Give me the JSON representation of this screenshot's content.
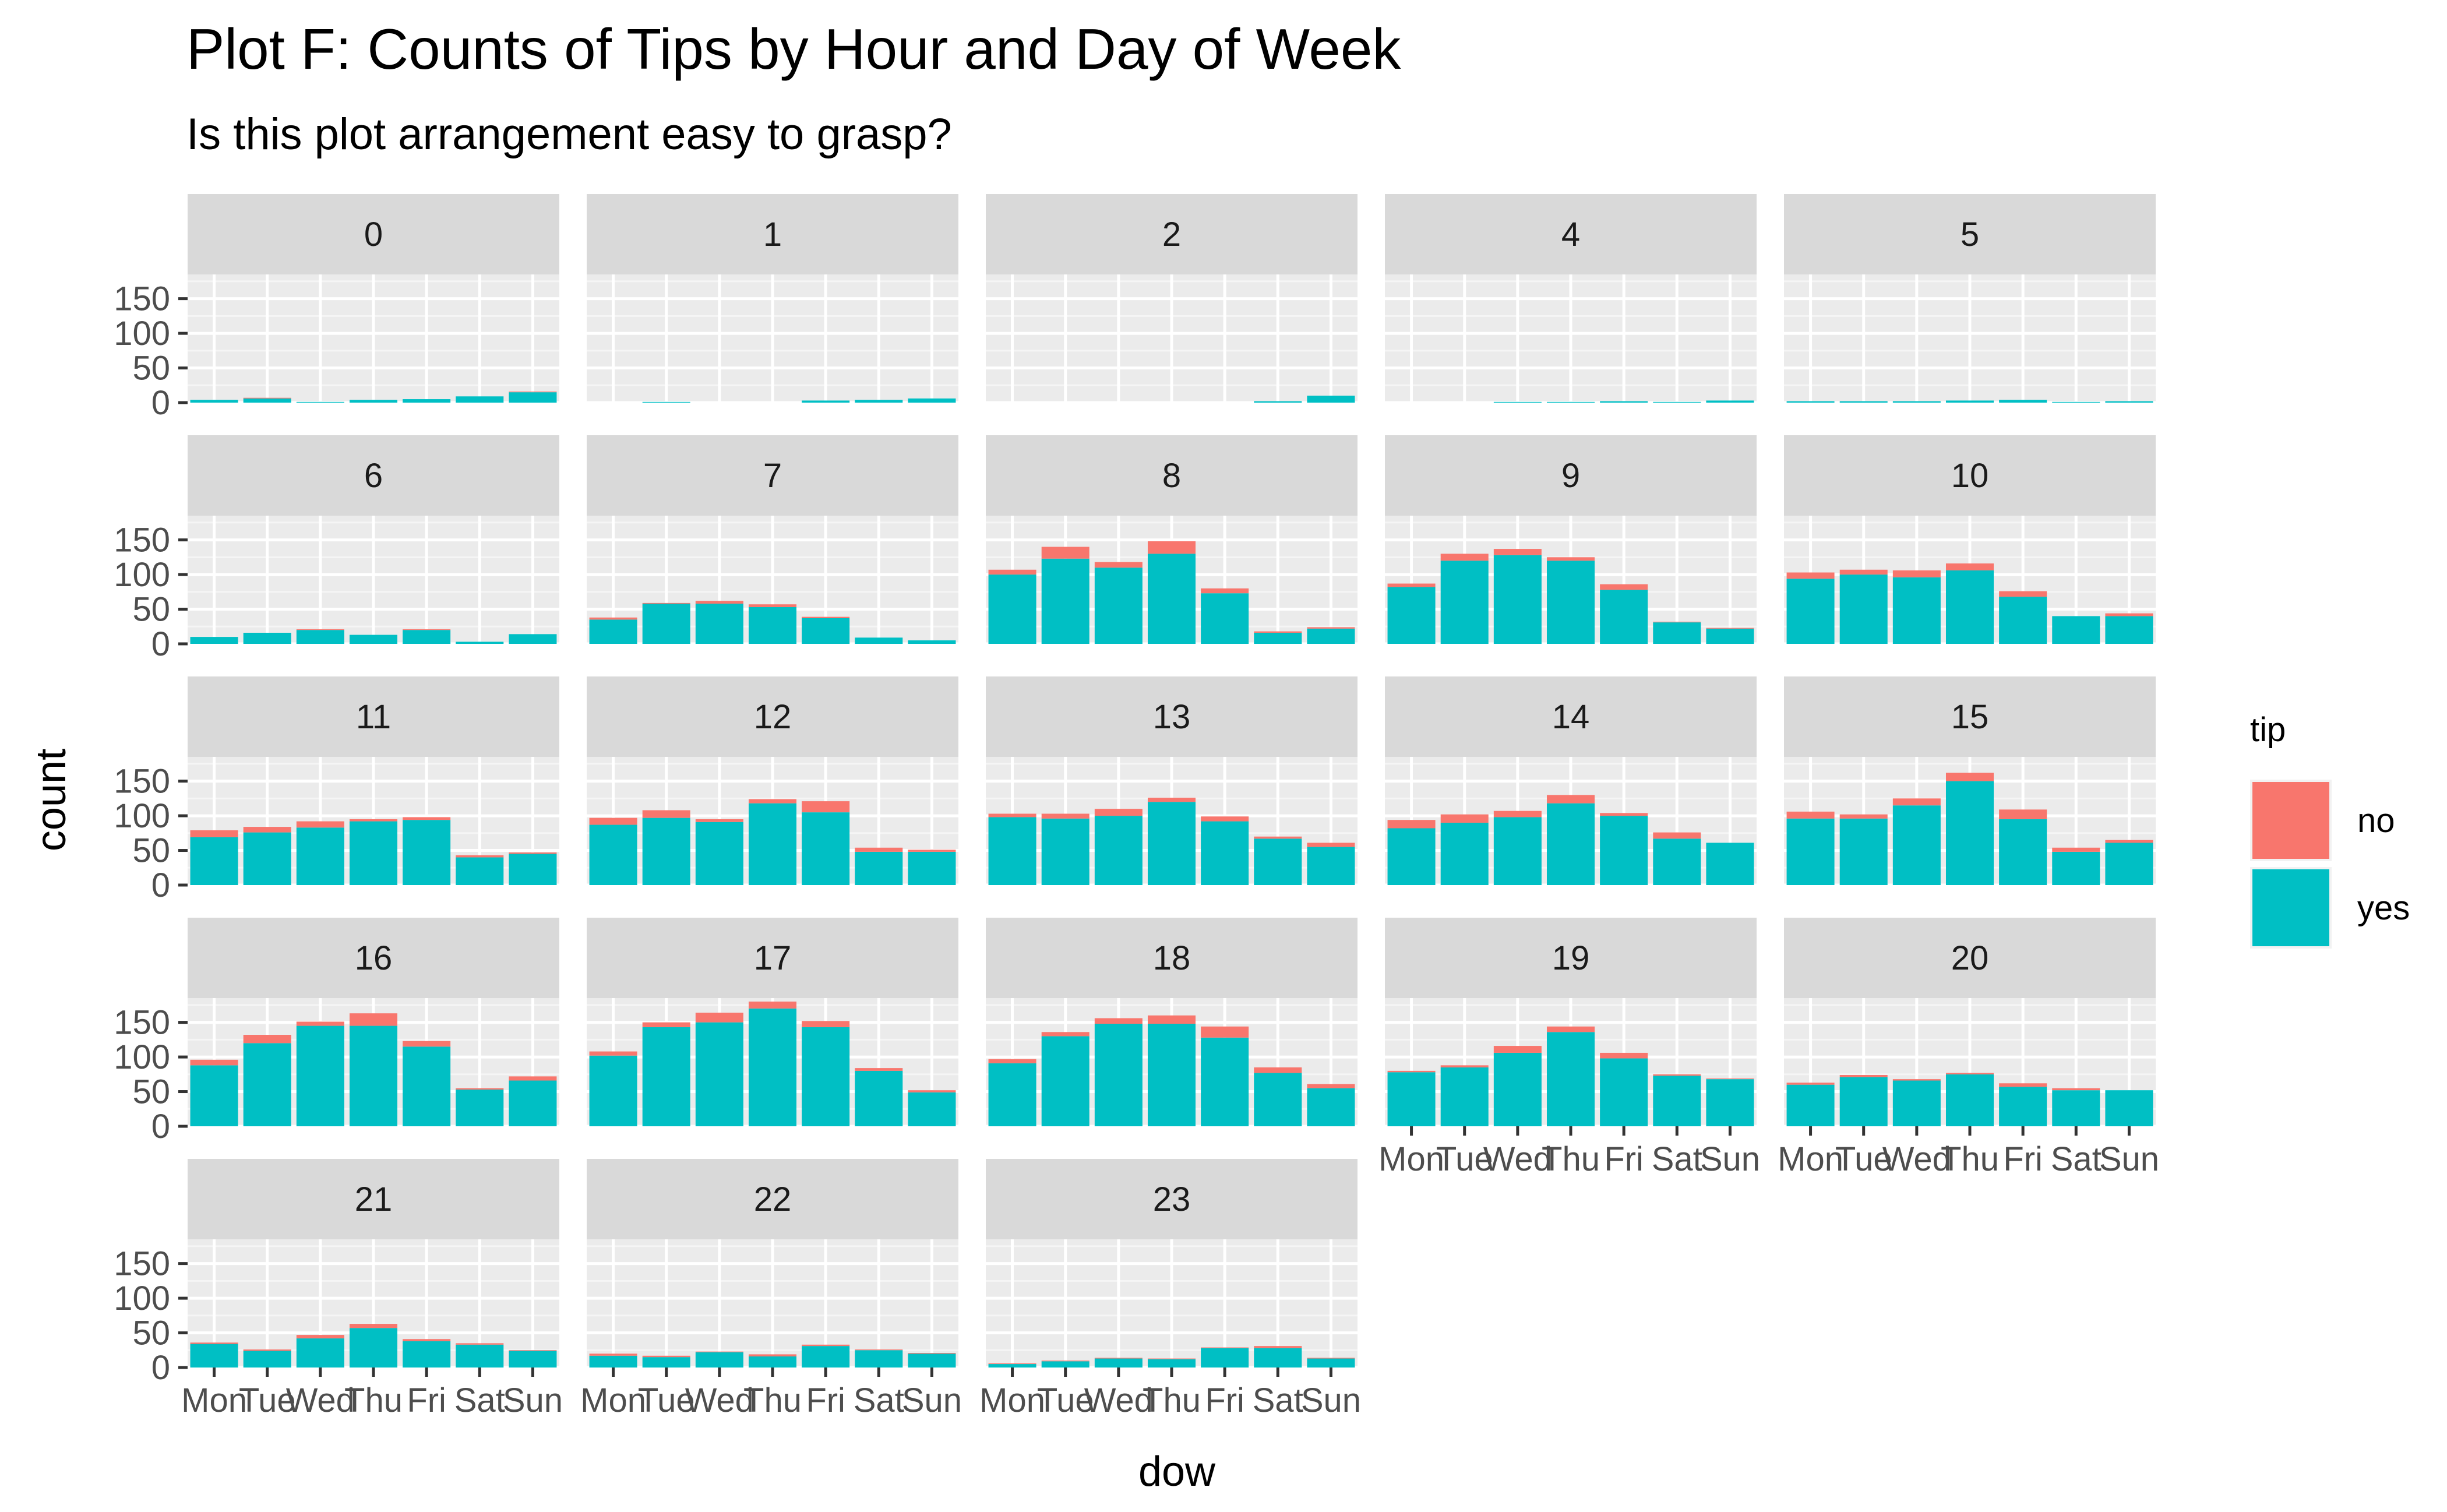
{
  "chart_data": {
    "type": "bar",
    "stacked": true,
    "faceted": true,
    "title": "Plot F: Counts of Tips by Hour and Day of Week",
    "subtitle": "Is this plot arrangement easy to grasp?",
    "xlabel": "dow",
    "ylabel": "count",
    "ylim": [
      0,
      185
    ],
    "yticks": [
      0,
      50,
      100,
      150
    ],
    "grid": true,
    "legend_position": "right",
    "legend": {
      "title": "tip",
      "entries": [
        {
          "key": "no",
          "label": "no",
          "color": "#F8766D"
        },
        {
          "key": "yes",
          "label": "yes",
          "color": "#00BFC4"
        }
      ]
    },
    "categories": [
      "Mon",
      "Tue",
      "Wed",
      "Thu",
      "Fri",
      "Sat",
      "Sun"
    ],
    "panels": [
      {
        "facet": "0",
        "yes": [
          4,
          6,
          1,
          4,
          5,
          9,
          15
        ],
        "no": [
          0,
          1,
          0,
          0,
          0,
          0,
          1
        ]
      },
      {
        "facet": "1",
        "yes": [
          0,
          1,
          0,
          0,
          3,
          4,
          6
        ],
        "no": [
          0,
          0,
          0,
          0,
          0,
          0,
          0
        ]
      },
      {
        "facet": "2",
        "yes": [
          0,
          0,
          0,
          0,
          0,
          2,
          10
        ],
        "no": [
          0,
          0,
          0,
          0,
          0,
          0,
          0
        ]
      },
      {
        "facet": "4",
        "yes": [
          0,
          0,
          1,
          1,
          2,
          1,
          3
        ],
        "no": [
          0,
          0,
          0,
          0,
          0,
          0,
          0
        ]
      },
      {
        "facet": "5",
        "yes": [
          2,
          2,
          2,
          3,
          4,
          1,
          2
        ],
        "no": [
          0,
          0,
          0,
          0,
          0,
          0,
          0
        ]
      },
      {
        "facet": "6",
        "yes": [
          10,
          16,
          20,
          13,
          20,
          3,
          14
        ],
        "no": [
          0,
          0,
          1,
          0,
          1,
          0,
          0
        ]
      },
      {
        "facet": "7",
        "yes": [
          35,
          58,
          58,
          53,
          37,
          9,
          5
        ],
        "no": [
          3,
          1,
          4,
          4,
          2,
          0,
          0
        ]
      },
      {
        "facet": "8",
        "yes": [
          100,
          123,
          110,
          130,
          73,
          16,
          22
        ],
        "no": [
          7,
          17,
          8,
          18,
          7,
          2,
          2
        ]
      },
      {
        "facet": "9",
        "yes": [
          82,
          120,
          128,
          120,
          78,
          31,
          22
        ],
        "no": [
          5,
          10,
          9,
          5,
          8,
          1,
          1
        ]
      },
      {
        "facet": "10",
        "yes": [
          94,
          100,
          96,
          106,
          68,
          40,
          40
        ],
        "no": [
          9,
          7,
          10,
          10,
          8,
          0,
          4
        ]
      },
      {
        "facet": "11",
        "yes": [
          69,
          76,
          83,
          92,
          94,
          40,
          45
        ],
        "no": [
          10,
          8,
          9,
          3,
          4,
          3,
          2
        ]
      },
      {
        "facet": "12",
        "yes": [
          87,
          97,
          91,
          118,
          105,
          48,
          48
        ],
        "no": [
          10,
          11,
          4,
          6,
          16,
          6,
          3
        ]
      },
      {
        "facet": "13",
        "yes": [
          98,
          96,
          100,
          120,
          92,
          67,
          55
        ],
        "no": [
          5,
          7,
          10,
          6,
          7,
          3,
          6
        ]
      },
      {
        "facet": "14",
        "yes": [
          82,
          90,
          98,
          118,
          100,
          67,
          61
        ],
        "no": [
          12,
          12,
          9,
          12,
          4,
          9,
          0
        ]
      },
      {
        "facet": "15",
        "yes": [
          96,
          96,
          115,
          150,
          95,
          48,
          61
        ],
        "no": [
          10,
          6,
          10,
          12,
          14,
          6,
          4
        ]
      },
      {
        "facet": "16",
        "yes": [
          88,
          120,
          145,
          145,
          115,
          53,
          66
        ],
        "no": [
          8,
          12,
          6,
          18,
          8,
          2,
          6
        ]
      },
      {
        "facet": "17",
        "yes": [
          102,
          143,
          150,
          170,
          143,
          80,
          49
        ],
        "no": [
          6,
          7,
          14,
          10,
          9,
          4,
          3
        ]
      },
      {
        "facet": "18",
        "yes": [
          91,
          130,
          148,
          148,
          128,
          77,
          55
        ],
        "no": [
          6,
          6,
          8,
          12,
          16,
          8,
          6
        ]
      },
      {
        "facet": "19",
        "yes": [
          78,
          85,
          106,
          136,
          98,
          73,
          68
        ],
        "no": [
          2,
          3,
          10,
          8,
          8,
          2,
          1
        ]
      },
      {
        "facet": "20",
        "yes": [
          60,
          71,
          66,
          75,
          57,
          52,
          52
        ],
        "no": [
          3,
          3,
          2,
          2,
          5,
          3,
          0
        ]
      },
      {
        "facet": "21",
        "yes": [
          34,
          24,
          42,
          57,
          38,
          33,
          24
        ],
        "no": [
          2,
          2,
          5,
          6,
          3,
          2,
          1
        ]
      },
      {
        "facet": "22",
        "yes": [
          17,
          15,
          22,
          16,
          31,
          25,
          20
        ],
        "no": [
          3,
          2,
          1,
          3,
          2,
          1,
          1
        ]
      },
      {
        "facet": "23",
        "yes": [
          5,
          9,
          13,
          12,
          28,
          28,
          13
        ],
        "no": [
          1,
          1,
          1,
          1,
          1,
          3,
          1
        ]
      }
    ]
  }
}
